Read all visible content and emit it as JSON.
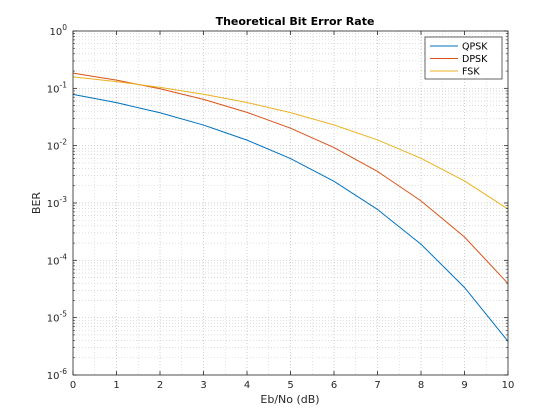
{
  "chart_data": {
    "type": "line",
    "title": "Theoretical Bit Error Rate",
    "xlabel": "Eb/No (dB)",
    "ylabel": "BER",
    "yscale": "log",
    "xlim": [
      0,
      10
    ],
    "ylim": [
      1e-06,
      1
    ],
    "grid": "major and minor, dotted",
    "legend_position": "top-right",
    "x_ticks": [
      "0",
      "1",
      "2",
      "3",
      "4",
      "5",
      "6",
      "7",
      "8",
      "9",
      "10"
    ],
    "y_ticks": [
      {
        "base": "10",
        "exp": "0",
        "value": 1
      },
      {
        "base": "10",
        "exp": "-1",
        "value": 0.1
      },
      {
        "base": "10",
        "exp": "-2",
        "value": 0.01
      },
      {
        "base": "10",
        "exp": "-3",
        "value": 0.001
      },
      {
        "base": "10",
        "exp": "-4",
        "value": 0.0001
      },
      {
        "base": "10",
        "exp": "-5",
        "value": 1e-05
      },
      {
        "base": "10",
        "exp": "-6",
        "value": 1e-06
      }
    ],
    "x": [
      0,
      1,
      2,
      3,
      4,
      5,
      6,
      7,
      8,
      9,
      10
    ],
    "series": [
      {
        "name": "QPSK",
        "color": "#0072BD",
        "values": [
          0.0786,
          0.0563,
          0.0375,
          0.0229,
          0.0125,
          0.00595,
          0.00239,
          0.000773,
          0.000191,
          3.36e-05,
          3.87e-06
        ]
      },
      {
        "name": "DPSK",
        "color": "#D95319",
        "values": [
          0.184,
          0.1388,
          0.0983,
          0.0642,
          0.0381,
          0.0202,
          0.00926,
          0.00355,
          0.00109,
          0.000255,
          3.93e-05
        ]
      },
      {
        "name": "FSK",
        "color": "#EDB120",
        "values": [
          0.1587,
          0.1309,
          0.104,
          0.0789,
          0.0565,
          0.0377,
          0.023,
          0.0126,
          0.00601,
          0.00242,
          0.000783
        ]
      }
    ]
  }
}
